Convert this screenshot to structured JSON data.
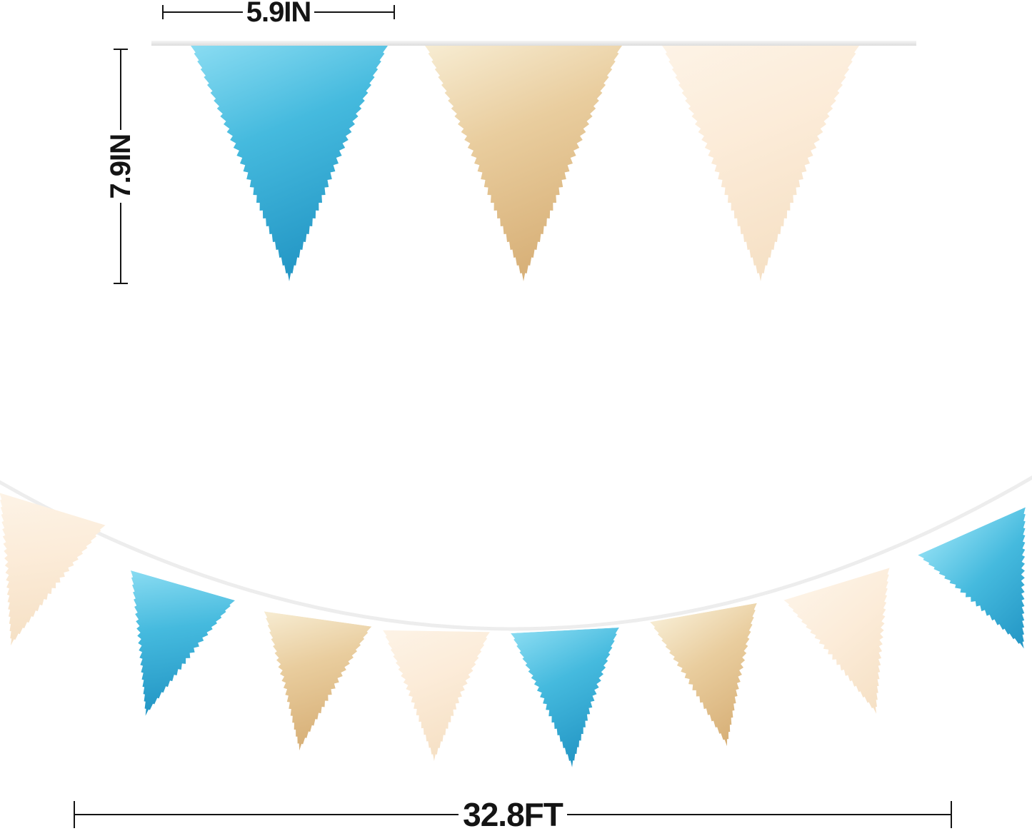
{
  "image_alt": "Triangle pennant bunting banner size diagram",
  "dimensions": {
    "flag_width": {
      "label": "5.9IN"
    },
    "flag_height": {
      "label": "7.9IN"
    },
    "banner_length": {
      "label": "32.8FT"
    }
  },
  "colors": {
    "blue": "#45bade",
    "blue_light": "#8adcf2",
    "blue_dark": "#2598c6",
    "gold": "#e9cd9e",
    "gold_light": "#f7ecd2",
    "gold_dark": "#d8b179",
    "cream": "#fcecd9",
    "cream_light": "#fdf3e6",
    "cream_dark": "#f6e1c6",
    "ribbon_top": "#f5f5f5",
    "ribbon_bottom": "#dcdcdc",
    "string": "#ededed",
    "line": "#141414"
  },
  "top_banner": {
    "flags": [
      "blue",
      "gold",
      "cream"
    ]
  },
  "garland": {
    "flags": [
      "cream",
      "blue",
      "gold",
      "cream",
      "blue",
      "gold",
      "cream",
      "blue"
    ]
  }
}
